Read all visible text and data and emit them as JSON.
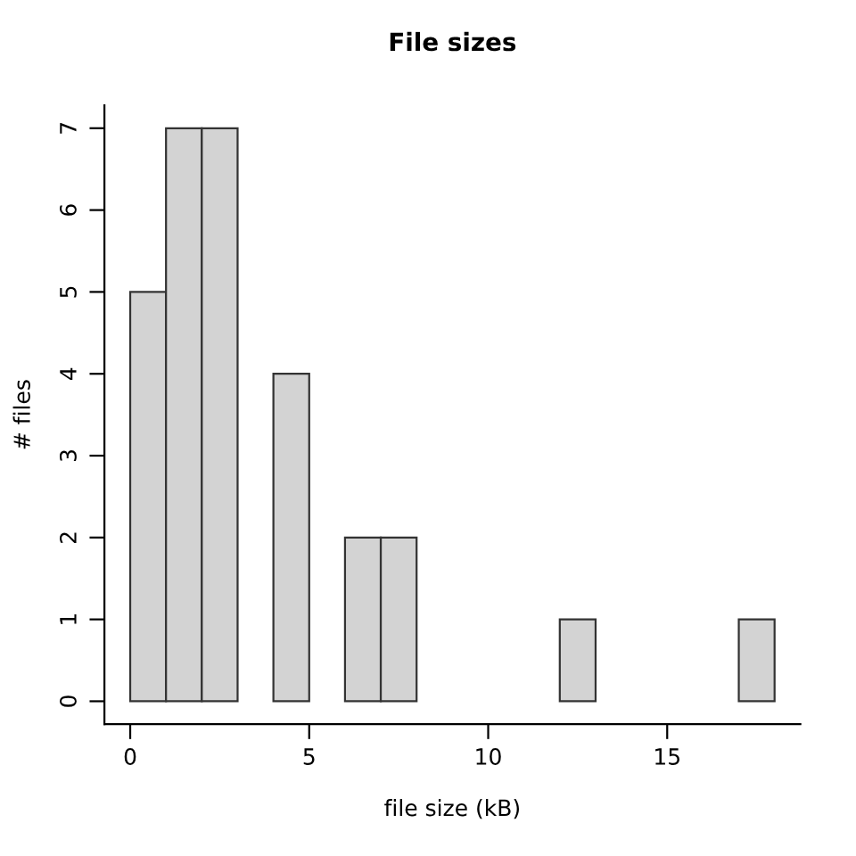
{
  "chart_data": {
    "type": "histogram",
    "title": "File sizes",
    "xlabel": "file size (kB)",
    "ylabel": "# files",
    "bins": [
      0,
      1,
      2,
      3,
      4,
      5,
      6,
      7,
      8,
      9,
      10,
      11,
      12,
      13,
      14,
      15,
      16,
      17,
      18
    ],
    "values": [
      5,
      7,
      7,
      0,
      4,
      0,
      2,
      2,
      0,
      0,
      0,
      0,
      1,
      0,
      0,
      0,
      0,
      1
    ],
    "color": "#d3d3d3",
    "xlim": [
      -0.72,
      18.72
    ],
    "xticks": [
      0,
      5,
      10,
      15
    ],
    "ylim": [
      -0.28,
      7.28
    ],
    "yticks": [
      0,
      1,
      2,
      3,
      4,
      5,
      6,
      7
    ],
    "grid": false
  }
}
